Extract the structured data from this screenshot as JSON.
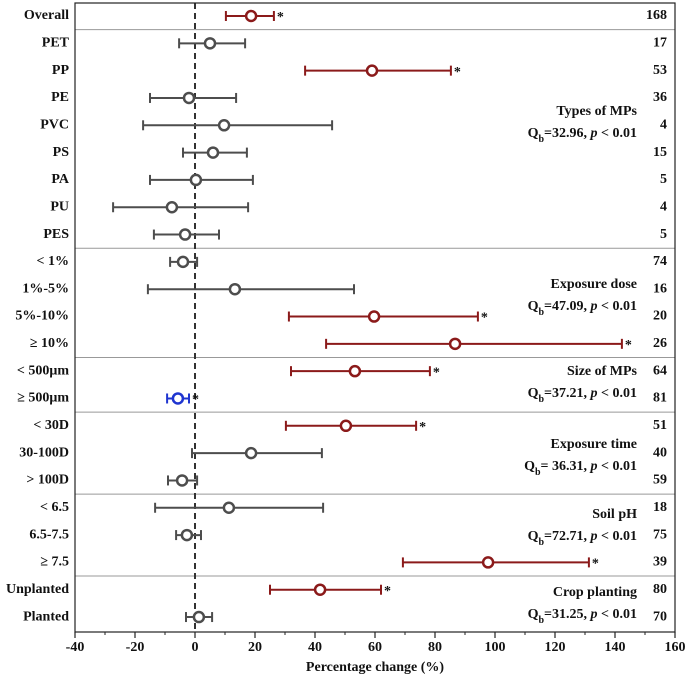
{
  "chart_data": {
    "type": "forest",
    "x_label": "Percentage change (%)",
    "xlim": [
      -40,
      160
    ],
    "xticks": [
      -40,
      -20,
      0,
      20,
      40,
      60,
      80,
      100,
      120,
      140,
      160
    ],
    "categories": [
      "Overall",
      "PET",
      "PP",
      "PE",
      "PVC",
      "PS",
      "PA",
      "PU",
      "PES",
      "< 1%",
      "1%-5%",
      "5%-10%",
      "≥ 10%",
      "< 500μm",
      "≥ 500μm",
      "< 30D",
      "30-100D",
      "> 100D",
      "< 6.5",
      "6.5-7.5",
      "≥ 7.5",
      "Unplanted",
      "Planted"
    ],
    "values": [
      18.7,
      5,
      59,
      -2,
      9.7,
      6,
      0.3,
      -7.7,
      -3.3,
      -4,
      13.3,
      59.7,
      86.7,
      53.3,
      -5.7,
      50.3,
      18.7,
      -4.3,
      11.3,
      -2.7,
      97.7,
      41.7,
      1.3
    ],
    "ci_low": [
      10.3,
      -5.3,
      36.7,
      -15,
      -17.3,
      -4,
      -15,
      -27.3,
      -13.7,
      -8.3,
      -15.7,
      31.3,
      43.7,
      32,
      -9.3,
      30.3,
      -1,
      -9,
      -13.3,
      -6.3,
      69.3,
      25,
      -3
    ],
    "ci_high": [
      26.3,
      16.7,
      85.3,
      13.7,
      45.7,
      17.3,
      19.3,
      17.7,
      8,
      0.7,
      53,
      94.3,
      142.3,
      78.3,
      -2,
      73.7,
      42.3,
      0.7,
      42.7,
      2,
      131.3,
      62,
      5.7
    ],
    "n": [
      168,
      17,
      53,
      36,
      4,
      15,
      5,
      4,
      5,
      74,
      16,
      20,
      26,
      64,
      81,
      51,
      40,
      59,
      18,
      75,
      39,
      80,
      70
    ],
    "significance": [
      "*",
      null,
      "*",
      null,
      null,
      null,
      null,
      null,
      null,
      null,
      null,
      "*",
      "*",
      "*",
      "*",
      "*",
      null,
      null,
      null,
      null,
      "*",
      "*",
      null
    ],
    "colors": [
      "#8b1a1a",
      "#4d4d4d",
      "#8b1a1a",
      "#4d4d4d",
      "#4d4d4d",
      "#4d4d4d",
      "#4d4d4d",
      "#4d4d4d",
      "#4d4d4d",
      "#4d4d4d",
      "#4d4d4d",
      "#8b1a1a",
      "#8b1a1a",
      "#8b1a1a",
      "#1f35d0",
      "#8b1a1a",
      "#4d4d4d",
      "#4d4d4d",
      "#4d4d4d",
      "#4d4d4d",
      "#8b1a1a",
      "#8b1a1a",
      "#4d4d4d"
    ],
    "groups": [
      {
        "title": "Types of MPs",
        "stat": [
          "Q",
          "b",
          "=32.96, ",
          "p",
          " < 0.01"
        ]
      },
      {
        "title": "Exposure dose",
        "stat": [
          "Q",
          "b",
          "=47.09, ",
          "p",
          " < 0.01"
        ]
      },
      {
        "title": "Size of MPs",
        "stat": [
          "Q",
          "b",
          "=37.21, ",
          "p",
          " < 0.01"
        ]
      },
      {
        "title": "Exposure time",
        "stat": [
          "Q",
          "b",
          "= 36.31, ",
          "p",
          " < 0.01"
        ]
      },
      {
        "title": "Soil pH",
        "stat": [
          "Q",
          "b",
          "=72.71, ",
          "p",
          " < 0.01"
        ]
      },
      {
        "title": "Crop planting",
        "stat": [
          "Q",
          "b",
          "=31.25, ",
          "p",
          " < 0.01"
        ]
      }
    ]
  }
}
